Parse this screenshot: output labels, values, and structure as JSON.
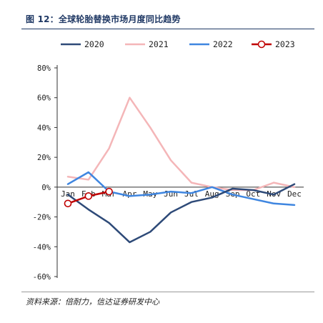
{
  "title": "图 12：全球轮胎替换市场月度同比趋势",
  "source": "资料来源：倍耐力，信达证券研发中心",
  "chart_data": {
    "type": "line",
    "categories": [
      "Jan",
      "Feb",
      "Mar",
      "Apr",
      "May",
      "Jun",
      "Jul",
      "Aug",
      "Sep",
      "Oct",
      "Nov",
      "Dec"
    ],
    "y_ticks": [
      "80%",
      "60%",
      "40%",
      "20%",
      "0%",
      "-20%",
      "-40%",
      "-60%"
    ],
    "ylim": [
      -60,
      80
    ],
    "legend_position": "top",
    "series": [
      {
        "name": "2020",
        "color": "#2e4a78",
        "marker": "none",
        "values": [
          -5,
          -15,
          -24,
          -37,
          -30,
          -17,
          -10,
          -7,
          -1,
          -2,
          -5,
          2
        ]
      },
      {
        "name": "2021",
        "color": "#f4b6b8",
        "marker": "none",
        "values": [
          7,
          5,
          26,
          60,
          40,
          18,
          3,
          0,
          -2,
          -2,
          3,
          0
        ]
      },
      {
        "name": "2022",
        "color": "#3f86e0",
        "marker": "none",
        "values": [
          2,
          10,
          -3,
          -6,
          -5,
          -3,
          -4,
          0,
          -5,
          -8,
          -11,
          -12
        ]
      },
      {
        "name": "2023",
        "color": "#c00000",
        "marker": "circle",
        "values": [
          -11,
          -6,
          -3,
          null,
          null,
          null,
          null,
          null,
          null,
          null,
          null,
          null
        ]
      }
    ]
  }
}
